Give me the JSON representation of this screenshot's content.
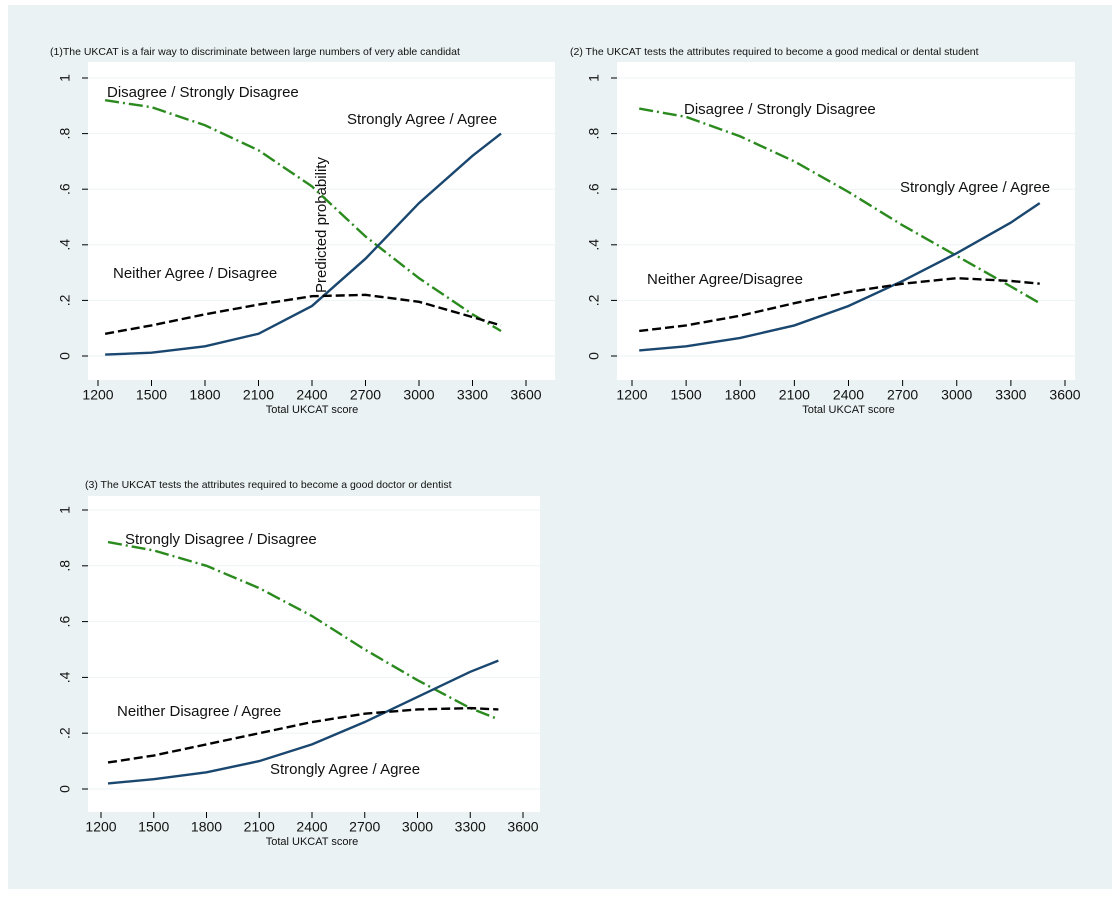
{
  "chart_data": [
    {
      "type": "line",
      "title": "(1)The UKCAT is a fair way to discriminate between large numbers of very able candidat",
      "x_label": "Total UKCAT score",
      "y_label": "Predicted probability",
      "x": [
        1240,
        1500,
        1800,
        2100,
        2400,
        2700,
        3000,
        3300,
        3460
      ],
      "series": [
        {
          "name": "Disagree / Strongly Disagree",
          "color": "#2a8a1e",
          "dash": "dashdot",
          "values": [
            0.92,
            0.895,
            0.83,
            0.74,
            0.61,
            0.43,
            0.28,
            0.15,
            0.09
          ]
        },
        {
          "name": "Strongly Agree / Agree",
          "color": "#1a476f",
          "dash": "solid",
          "values": [
            0.005,
            0.012,
            0.035,
            0.08,
            0.18,
            0.35,
            0.55,
            0.72,
            0.8
          ]
        },
        {
          "name": "Neither Agree / Disagree",
          "color": "#000000",
          "dash": "dashed",
          "values": [
            0.08,
            0.11,
            0.15,
            0.185,
            0.215,
            0.22,
            0.195,
            0.14,
            0.11
          ]
        }
      ],
      "xlim": [
        1200,
        3600
      ],
      "xticks": [
        1200,
        1500,
        1800,
        2100,
        2400,
        2700,
        3000,
        3300,
        3600
      ],
      "ylim": [
        0,
        1
      ],
      "yticks": [
        0,
        {
          "value": 0.2,
          "label": ".2"
        },
        {
          "value": 0.4,
          "label": ".4"
        },
        {
          "value": 0.6,
          "label": ".6"
        },
        {
          "value": 0.8,
          "label": ".8"
        },
        1
      ]
    },
    {
      "type": "line",
      "title": "(2) The UKCAT tests the attributes required to become a good medical or dental student",
      "x_label": "Total UKCAT score",
      "x": [
        1240,
        1500,
        1800,
        2100,
        2400,
        2700,
        3000,
        3300,
        3460
      ],
      "series": [
        {
          "name": "Disagree / Strongly Disagree",
          "color": "#2a8a1e",
          "dash": "dashdot",
          "values": [
            0.89,
            0.86,
            0.79,
            0.7,
            0.59,
            0.47,
            0.36,
            0.25,
            0.19
          ]
        },
        {
          "name": "Strongly Agree / Agree",
          "color": "#1a476f",
          "dash": "solid",
          "values": [
            0.02,
            0.035,
            0.065,
            0.11,
            0.18,
            0.27,
            0.37,
            0.48,
            0.55
          ]
        },
        {
          "name": "Neither Agree/Disagree",
          "color": "#000000",
          "dash": "dashed",
          "values": [
            0.09,
            0.11,
            0.145,
            0.19,
            0.23,
            0.26,
            0.28,
            0.27,
            0.26
          ]
        }
      ],
      "xlim": [
        1200,
        3600
      ],
      "xticks": [
        1200,
        1500,
        1800,
        2100,
        2400,
        2700,
        3000,
        3300,
        3600
      ],
      "ylim": [
        0,
        1
      ],
      "yticks": [
        0,
        {
          "value": 0.2,
          "label": ".2"
        },
        {
          "value": 0.4,
          "label": ".4"
        },
        {
          "value": 0.6,
          "label": ".6"
        },
        {
          "value": 0.8,
          "label": ".8"
        },
        1
      ]
    },
    {
      "type": "line",
      "title": "(3) The UKCAT tests the attributes required to become a good doctor or dentist",
      "x_label": "Total UKCAT score",
      "x": [
        1240,
        1500,
        1800,
        2100,
        2400,
        2700,
        3000,
        3300,
        3460
      ],
      "series": [
        {
          "name": "Strongly Disagree / Disagree",
          "color": "#2a8a1e",
          "dash": "dashdot",
          "values": [
            0.885,
            0.855,
            0.8,
            0.72,
            0.62,
            0.5,
            0.39,
            0.29,
            0.25
          ]
        },
        {
          "name": "Strongly Agree / Agree",
          "color": "#1a476f",
          "dash": "solid",
          "values": [
            0.02,
            0.035,
            0.06,
            0.1,
            0.16,
            0.24,
            0.33,
            0.42,
            0.46
          ]
        },
        {
          "name": "Neither Disagree / Agree",
          "color": "#000000",
          "dash": "dashed",
          "values": [
            0.095,
            0.12,
            0.16,
            0.2,
            0.24,
            0.27,
            0.285,
            0.29,
            0.285
          ]
        }
      ],
      "xlim": [
        1200,
        3600
      ],
      "xticks": [
        1200,
        1500,
        1800,
        2100,
        2400,
        2700,
        3000,
        3300,
        3600
      ],
      "ylim": [
        0,
        1
      ],
      "yticks": [
        0,
        {
          "value": 0.2,
          "label": ".2"
        },
        {
          "value": 0.4,
          "label": ".4"
        },
        {
          "value": 0.6,
          "label": ".6"
        },
        {
          "value": 0.8,
          "label": ".8"
        },
        1
      ]
    }
  ]
}
